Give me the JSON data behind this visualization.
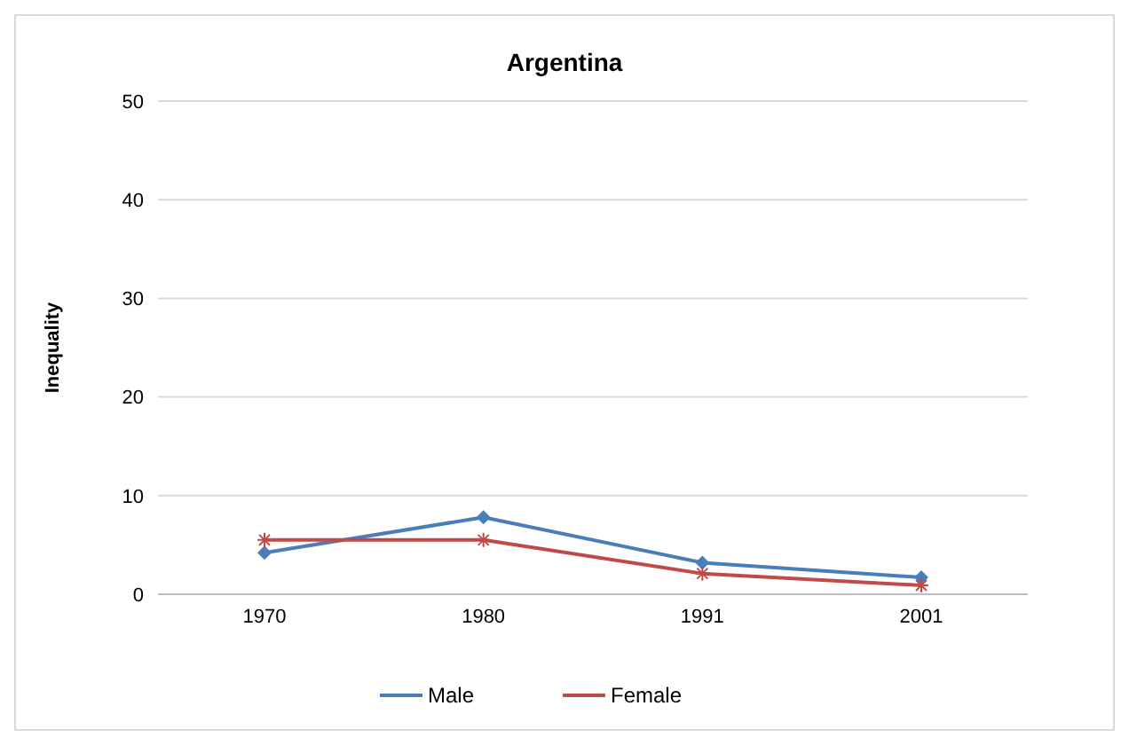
{
  "chart_data": {
    "type": "line",
    "title": "Argentina",
    "ylabel": "Inequality",
    "categories": [
      "1970",
      "1980",
      "1991",
      "2001"
    ],
    "series": [
      {
        "name": "Male",
        "color": "#4a7ebb",
        "values": [
          4.2,
          7.8,
          3.2,
          1.7
        ],
        "marker": "diamond"
      },
      {
        "name": "Female",
        "color": "#be4b48",
        "values": [
          5.5,
          5.5,
          2.1,
          0.9
        ],
        "marker": "cross"
      }
    ],
    "ylim": [
      0,
      50
    ],
    "yticks": [
      0,
      10,
      20,
      30,
      40,
      50
    ],
    "grid": "y",
    "legend": "bottom"
  }
}
